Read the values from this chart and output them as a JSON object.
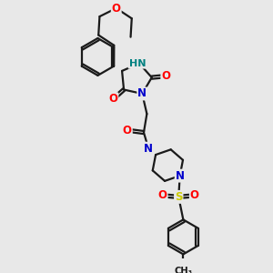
{
  "background_color": "#e8e8e8",
  "atom_colors": {
    "O": "#ff0000",
    "N": "#0000cc",
    "S": "#cccc00",
    "NH": "#008080",
    "C": "#1a1a1a"
  },
  "bond_color": "#1a1a1a",
  "bond_width": 1.6,
  "figsize": [
    3.0,
    3.0
  ],
  "dpi": 100,
  "xlim": [
    0,
    10
  ],
  "ylim": [
    0,
    10
  ]
}
